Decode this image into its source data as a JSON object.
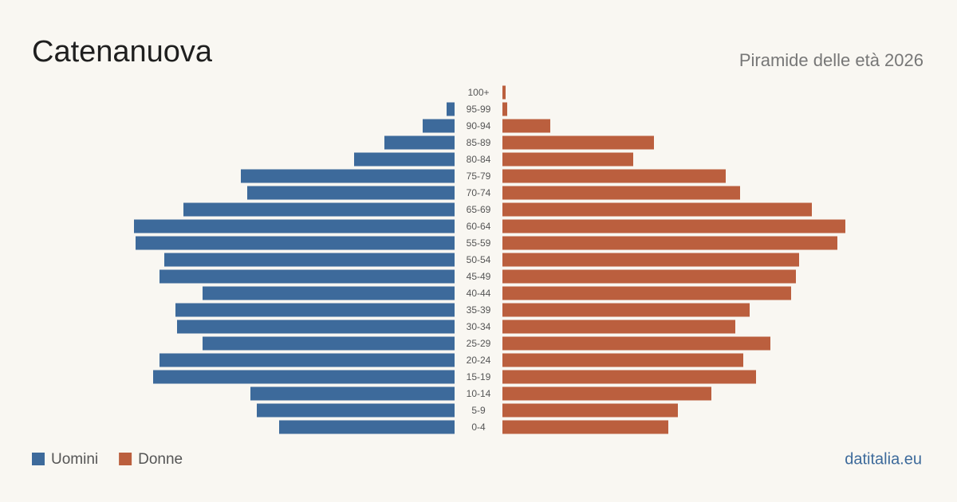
{
  "chart_data": {
    "type": "pyramid",
    "title": "Catenanuova",
    "subtitle": "Piramide delle età 2026",
    "source": "datitalia.eu",
    "categories": [
      "100+",
      "95-99",
      "90-94",
      "85-89",
      "80-84",
      "75-79",
      "70-74",
      "65-69",
      "60-64",
      "55-59",
      "50-54",
      "45-49",
      "40-44",
      "35-39",
      "30-34",
      "25-29",
      "20-24",
      "15-19",
      "10-14",
      "5-9",
      "0-4"
    ],
    "series": [
      {
        "name": "Uomini",
        "color": "#3d6a9b",
        "values": [
          0,
          5,
          20,
          44,
          63,
          134,
          130,
          170,
          201,
          200,
          182,
          185,
          158,
          175,
          174,
          158,
          185,
          189,
          128,
          124,
          110
        ]
      },
      {
        "name": "Donne",
        "color": "#bb5f3e",
        "values": [
          2,
          3,
          30,
          95,
          82,
          140,
          149,
          194,
          215,
          210,
          186,
          184,
          181,
          155,
          146,
          168,
          151,
          159,
          131,
          110,
          104
        ]
      }
    ]
  }
}
